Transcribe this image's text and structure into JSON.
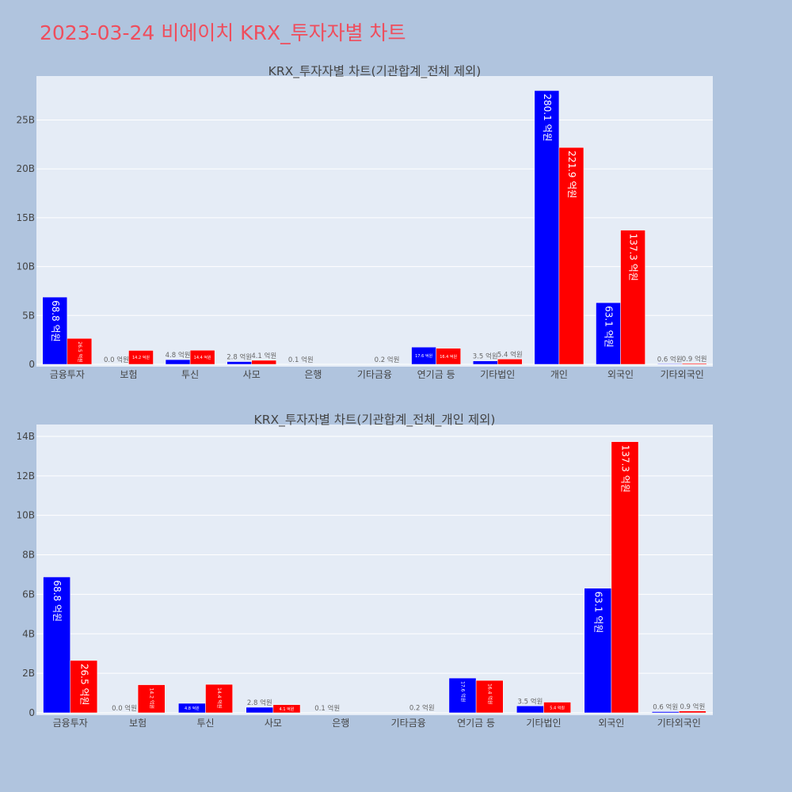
{
  "page_title": "2023-03-24 비에이치 KRX_투자자별 차트",
  "colors": {
    "buy": "#0000ff",
    "sell": "#ff0000",
    "plot_bg": "#e5ecf6",
    "page_bg": "#b0c4de",
    "title": "#ef4d5c"
  },
  "chart_data": [
    {
      "type": "bar",
      "title": "KRX_투자자별 차트(기관합계_전체 제외)",
      "categories": [
        "금융투자",
        "보험",
        "투신",
        "사모",
        "은행",
        "기타금융",
        "연기금 등",
        "기타법인",
        "개인",
        "외국인",
        "기타외국인"
      ],
      "series": [
        {
          "values": [
            6880000000,
            0,
            480000000,
            280000000,
            10000000,
            0,
            1760000000,
            350000000,
            28010000000,
            6310000000,
            60000000
          ],
          "labels": [
            "68.8 억원",
            "0.0 억원",
            "4.8 억원",
            "2.8 억원",
            "0.1 억원",
            "",
            "17.6 억원",
            "3.5 억원",
            "280.1 억원",
            "63.1 억원",
            "0.6 억원"
          ]
        },
        {
          "values": [
            2650000000,
            1420000000,
            1440000000,
            410000000,
            0,
            20000000,
            1640000000,
            540000000,
            22190000000,
            13730000000,
            90000000
          ],
          "labels": [
            "26.5 억원",
            "14.2 억원",
            "14.4 억원",
            "4.1 억원",
            "",
            "0.2 억원",
            "16.4 억원",
            "5.4 억원",
            "221.9 억원",
            "137.3 억원",
            "0.9 억원"
          ]
        }
      ],
      "ylim": [
        0,
        29500000000
      ],
      "yticks": [
        0,
        5000000000,
        10000000000,
        15000000000,
        20000000000,
        25000000000
      ],
      "ytick_labels": [
        "0",
        "5B",
        "10B",
        "15B",
        "20B",
        "25B"
      ],
      "grid": true
    },
    {
      "type": "bar",
      "title": "KRX_투자자별 차트(기관합계_전체_개인 제외)",
      "categories": [
        "금융투자",
        "보험",
        "투신",
        "사모",
        "은행",
        "기타금융",
        "연기금 등",
        "기타법인",
        "외국인",
        "기타외국인"
      ],
      "series": [
        {
          "values": [
            6880000000,
            0,
            480000000,
            280000000,
            10000000,
            0,
            1760000000,
            350000000,
            6310000000,
            60000000
          ],
          "labels": [
            "68.8 억원",
            "0.0 억원",
            "4.8 억원",
            "2.8 억원",
            "0.1 억원",
            "",
            "17.6 억원",
            "3.5 억원",
            "63.1 억원",
            "0.6 억원"
          ]
        },
        {
          "values": [
            2650000000,
            1420000000,
            1440000000,
            410000000,
            0,
            20000000,
            1640000000,
            540000000,
            13730000000,
            90000000
          ],
          "labels": [
            "26.5 억원",
            "14.2 억원",
            "14.4 억원",
            "4.1 억원",
            "",
            "0.2 억원",
            "16.4 억원",
            "5.4 억원",
            "137.3 억원",
            "0.9 억원"
          ]
        }
      ],
      "ylim": [
        0,
        14600000000
      ],
      "yticks": [
        0,
        2000000000,
        4000000000,
        6000000000,
        8000000000,
        10000000000,
        12000000000,
        14000000000
      ],
      "ytick_labels": [
        "0",
        "2B",
        "4B",
        "6B",
        "8B",
        "10B",
        "12B",
        "14B"
      ],
      "grid": true
    }
  ]
}
